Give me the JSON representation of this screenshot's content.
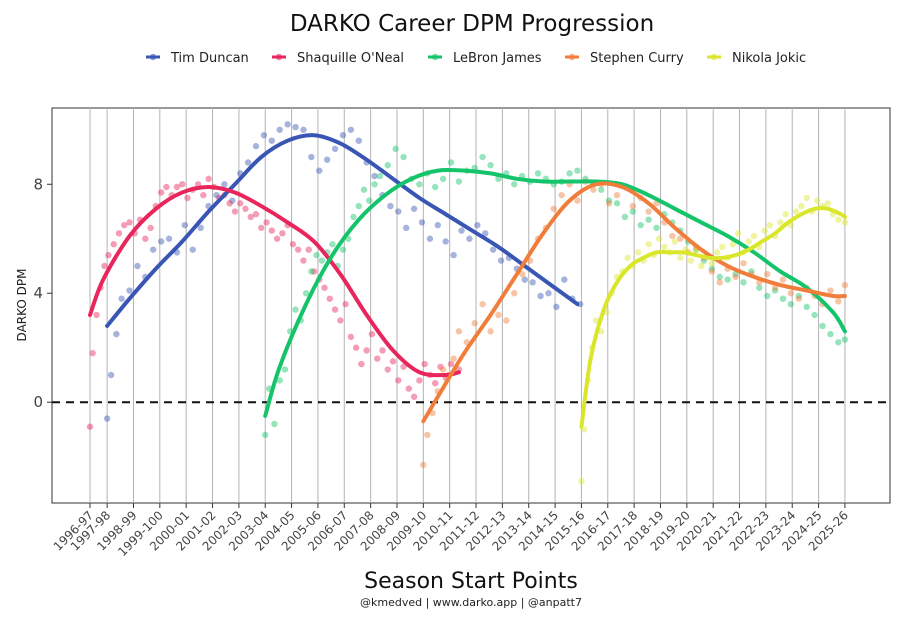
{
  "chart_data": {
    "type": "scatter",
    "title": "DARKO Career DPM Progression",
    "xlabel": "Season Start Points",
    "ylabel": "DARKO DPM",
    "caption": "@kmedved | www.darko.app | @anpatt7",
    "reference_line": 0,
    "ylim": [
      -3.7,
      10.8
    ],
    "yticks": [
      0,
      4,
      8
    ],
    "x_ticks": [
      "1996-97",
      "1997-98",
      "1998-99",
      "1999-100",
      "2000-01",
      "2001-02",
      "2002-03",
      "2003-04",
      "2004-05",
      "2005-06",
      "2006-07",
      "2007-08",
      "2008-09",
      "2009-10",
      "2010-11",
      "2011-12",
      "2012-13",
      "2013-14",
      "2014-15",
      "2015-16",
      "2016-17",
      "2017-18",
      "2018-19",
      "2019-20",
      "2020-21",
      "2021-22",
      "2022-23",
      "2023-24",
      "2024-25",
      "2025-26"
    ],
    "x_tick_positions": [
      0,
      0.65,
      1.65,
      2.65,
      3.65,
      4.65,
      5.65,
      6.65,
      7.65,
      8.65,
      9.65,
      10.65,
      11.65,
      12.65,
      13.65,
      14.65,
      15.65,
      16.65,
      17.65,
      18.65,
      19.65,
      20.65,
      21.65,
      22.65,
      23.65,
      24.65,
      25.65,
      26.65,
      27.65,
      28.65
    ],
    "legend_position": "top",
    "series": [
      {
        "name": "Tim Duncan",
        "color": "#3a56b4",
        "trend_x": [
          0.65,
          1.5,
          2.5,
          3.5,
          4.5,
          5.5,
          6.5,
          7.5,
          8.5,
          9.5,
          10.5,
          11.5,
          12.5,
          13.5,
          14.5,
          15.5,
          16.5,
          17.5,
          18.5
        ],
        "trend_y": [
          2.8,
          3.8,
          4.9,
          5.9,
          7.0,
          8.0,
          9.0,
          9.6,
          9.8,
          9.5,
          8.9,
          8.2,
          7.5,
          6.9,
          6.3,
          5.7,
          5.0,
          4.3,
          3.6
        ],
        "points_x": [
          0.65,
          0.8,
          1.0,
          1.2,
          1.5,
          1.8,
          2.1,
          2.4,
          2.7,
          3.0,
          3.3,
          3.6,
          3.9,
          4.2,
          4.5,
          4.8,
          5.1,
          5.4,
          5.7,
          6.0,
          6.3,
          6.6,
          6.9,
          7.2,
          7.5,
          7.8,
          8.1,
          8.4,
          8.7,
          9.0,
          9.3,
          9.6,
          9.9,
          10.2,
          10.5,
          10.8,
          11.1,
          11.4,
          11.7,
          12.0,
          12.3,
          12.6,
          12.9,
          13.2,
          13.5,
          13.8,
          14.1,
          14.4,
          14.7,
          15.0,
          15.3,
          15.6,
          15.9,
          16.2,
          16.5,
          16.8,
          17.1,
          17.4,
          17.7,
          18.0,
          18.3,
          18.6
        ],
        "points_y": [
          -0.6,
          1.0,
          2.5,
          3.8,
          4.1,
          5.0,
          4.6,
          5.6,
          5.9,
          6.0,
          5.5,
          6.5,
          5.6,
          6.4,
          7.2,
          7.6,
          8.0,
          7.4,
          8.4,
          8.8,
          9.4,
          9.8,
          9.6,
          10.0,
          10.2,
          10.1,
          10.0,
          9.0,
          8.5,
          8.9,
          9.3,
          9.8,
          10.0,
          9.6,
          8.8,
          8.3,
          7.6,
          7.2,
          7.0,
          6.4,
          7.1,
          6.6,
          6.0,
          6.5,
          5.9,
          5.4,
          6.3,
          6.0,
          6.5,
          6.2,
          5.6,
          5.2,
          5.3,
          4.9,
          4.5,
          4.4,
          3.9,
          4.0,
          3.5,
          4.5,
          3.8,
          3.6
        ]
      },
      {
        "name": "Shaquille O'Neal",
        "color": "#e8265c",
        "trend_x": [
          0,
          0.5,
          1.5,
          2.5,
          3.5,
          4.5,
          5.5,
          6.5,
          7.5,
          8.5,
          9.5,
          10.5,
          11.5,
          12.5,
          13.5,
          14.0
        ],
        "trend_y": [
          3.2,
          4.5,
          6.1,
          7.1,
          7.7,
          7.9,
          7.7,
          7.2,
          6.6,
          5.9,
          4.7,
          3.2,
          1.9,
          1.1,
          1.0,
          1.1
        ],
        "points_x": [
          0,
          0.1,
          0.25,
          0.4,
          0.55,
          0.7,
          0.9,
          1.1,
          1.3,
          1.5,
          1.7,
          1.9,
          2.1,
          2.3,
          2.5,
          2.7,
          2.9,
          3.1,
          3.3,
          3.5,
          3.7,
          3.9,
          4.1,
          4.3,
          4.5,
          4.7,
          4.9,
          5.1,
          5.3,
          5.5,
          5.7,
          5.9,
          6.1,
          6.3,
          6.5,
          6.7,
          6.9,
          7.1,
          7.3,
          7.5,
          7.7,
          7.9,
          8.1,
          8.3,
          8.5,
          8.7,
          8.9,
          9.1,
          9.3,
          9.5,
          9.7,
          9.9,
          10.1,
          10.3,
          10.5,
          10.7,
          10.9,
          11.1,
          11.3,
          11.5,
          11.7,
          11.9,
          12.1,
          12.3,
          12.5,
          12.7,
          12.9,
          13.1,
          13.3,
          13.5,
          13.7,
          14.0
        ],
        "points_y": [
          -0.9,
          1.8,
          3.2,
          4.2,
          5.0,
          5.4,
          5.8,
          6.2,
          6.5,
          6.6,
          6.2,
          6.7,
          6.0,
          6.4,
          7.2,
          7.7,
          7.9,
          7.6,
          7.9,
          8.0,
          7.5,
          7.8,
          8.0,
          7.6,
          8.2,
          7.9,
          7.5,
          7.6,
          7.3,
          7.0,
          7.3,
          7.1,
          6.8,
          6.9,
          6.4,
          6.6,
          6.3,
          6.0,
          6.2,
          6.5,
          5.8,
          5.6,
          5.2,
          5.6,
          4.8,
          4.5,
          4.2,
          3.8,
          3.4,
          3.0,
          3.6,
          2.4,
          2.0,
          1.4,
          1.9,
          2.5,
          1.6,
          1.9,
          1.2,
          1.5,
          0.8,
          1.3,
          0.5,
          0.2,
          0.8,
          1.4,
          1.0,
          0.7,
          1.3,
          0.9,
          1.4,
          1.2
        ]
      },
      {
        "name": "LeBron James",
        "color": "#15c46a",
        "trend_x": [
          6.65,
          7.2,
          8.2,
          9.2,
          10.2,
          11.2,
          12.2,
          13.2,
          14.2,
          15.2,
          16.2,
          17.2,
          18.2,
          19.2,
          20.2,
          21.2,
          22.2,
          23.2,
          24.2,
          25.2,
          26.2,
          27.2,
          28.2,
          28.65
        ],
        "trend_y": [
          -0.5,
          1.3,
          3.6,
          5.4,
          6.7,
          7.6,
          8.2,
          8.5,
          8.5,
          8.4,
          8.2,
          8.1,
          8.1,
          8.1,
          8.0,
          7.6,
          7.1,
          6.6,
          6.1,
          5.5,
          4.8,
          4.2,
          3.3,
          2.6
        ],
        "points_x": [
          6.65,
          6.8,
          7.0,
          7.2,
          7.4,
          7.6,
          7.8,
          8.0,
          8.2,
          8.4,
          8.6,
          8.8,
          9.0,
          9.2,
          9.4,
          9.6,
          9.8,
          10.0,
          10.2,
          10.4,
          10.6,
          10.8,
          11.0,
          11.3,
          11.6,
          11.9,
          12.2,
          12.5,
          12.8,
          13.1,
          13.4,
          13.7,
          14.0,
          14.3,
          14.6,
          14.9,
          15.2,
          15.5,
          15.8,
          16.1,
          16.4,
          16.7,
          17.0,
          17.3,
          17.6,
          17.9,
          18.2,
          18.5,
          18.8,
          19.1,
          19.4,
          19.7,
          20.0,
          20.3,
          20.6,
          20.9,
          21.2,
          21.5,
          21.8,
          22.1,
          22.4,
          22.7,
          23.0,
          23.3,
          23.6,
          23.9,
          24.2,
          24.5,
          24.8,
          25.1,
          25.4,
          25.7,
          26.0,
          26.3,
          26.6,
          26.9,
          27.2,
          27.5,
          27.8,
          28.1,
          28.4,
          28.65
        ],
        "points_y": [
          -1.2,
          0.5,
          -0.8,
          0.8,
          1.2,
          2.6,
          3.4,
          3.0,
          4.0,
          4.8,
          5.4,
          5.2,
          5.5,
          5.8,
          5.0,
          5.6,
          6.0,
          6.8,
          7.2,
          7.8,
          7.4,
          8.0,
          8.3,
          8.7,
          9.3,
          9.0,
          8.2,
          8.0,
          8.4,
          7.9,
          8.2,
          8.8,
          8.1,
          8.5,
          8.6,
          9.0,
          8.7,
          8.2,
          8.4,
          8.0,
          8.3,
          8.1,
          8.4,
          8.2,
          8.0,
          8.1,
          8.4,
          8.5,
          8.2,
          8.0,
          7.8,
          7.4,
          7.3,
          6.8,
          7.0,
          6.5,
          6.7,
          6.4,
          6.9,
          6.6,
          6.3,
          5.9,
          5.6,
          5.2,
          4.9,
          4.6,
          4.5,
          4.7,
          4.4,
          4.8,
          4.2,
          3.9,
          4.1,
          3.8,
          3.6,
          3.9,
          3.5,
          3.2,
          2.8,
          2.5,
          2.2,
          2.3
        ]
      },
      {
        "name": "Stephen Curry",
        "color": "#f07d3a",
        "trend_x": [
          12.65,
          13.2,
          14.2,
          15.2,
          16.2,
          17.2,
          18.2,
          19.2,
          20.2,
          21.2,
          22.2,
          23.2,
          24.2,
          25.2,
          26.2,
          27.2,
          28.2,
          28.65
        ],
        "trend_y": [
          -0.7,
          0.2,
          1.8,
          3.2,
          4.7,
          6.2,
          7.4,
          8.0,
          7.9,
          7.3,
          6.4,
          5.6,
          5.0,
          4.6,
          4.3,
          4.1,
          3.9,
          3.9
        ],
        "points_x": [
          12.65,
          12.8,
          13.0,
          13.2,
          13.4,
          13.6,
          13.8,
          14.0,
          14.3,
          14.6,
          14.9,
          15.2,
          15.5,
          15.8,
          16.1,
          16.4,
          16.7,
          17.0,
          17.3,
          17.6,
          17.9,
          18.2,
          18.5,
          18.8,
          19.1,
          19.4,
          19.7,
          20.0,
          20.3,
          20.6,
          20.9,
          21.2,
          21.5,
          21.8,
          22.1,
          22.4,
          22.7,
          23.0,
          23.3,
          23.6,
          23.9,
          24.2,
          24.5,
          24.8,
          25.1,
          25.4,
          25.7,
          26.0,
          26.3,
          26.6,
          26.9,
          27.2,
          27.5,
          27.8,
          28.1,
          28.4,
          28.65
        ],
        "points_y": [
          -2.3,
          -1.2,
          -0.4,
          0.4,
          1.2,
          1.0,
          1.6,
          2.6,
          2.2,
          2.9,
          3.6,
          2.6,
          3.2,
          3.0,
          4.0,
          4.7,
          5.2,
          6.0,
          6.4,
          7.1,
          7.6,
          8.0,
          7.4,
          8.1,
          7.8,
          8.0,
          7.3,
          7.6,
          7.9,
          7.2,
          7.5,
          7.0,
          7.3,
          6.6,
          6.1,
          6.0,
          5.5,
          5.7,
          5.3,
          4.8,
          4.4,
          4.9,
          4.6,
          5.1,
          4.7,
          4.4,
          4.7,
          4.2,
          4.5,
          4.0,
          3.8,
          4.2,
          3.9,
          3.6,
          4.1,
          3.7,
          4.3
        ]
      },
      {
        "name": "Nikola Jokic",
        "color": "#d9e62a",
        "trend_x": [
          18.65,
          19.0,
          19.5,
          20.0,
          20.5,
          21.0,
          21.5,
          22.0,
          22.5,
          23.0,
          23.5,
          24.0,
          24.5,
          25.0,
          25.5,
          26.0,
          26.5,
          27.0,
          27.5,
          28.0,
          28.5,
          28.65
        ],
        "trend_y": [
          -0.9,
          1.6,
          3.4,
          4.4,
          5.0,
          5.3,
          5.5,
          5.5,
          5.5,
          5.4,
          5.3,
          5.3,
          5.4,
          5.6,
          5.9,
          6.2,
          6.6,
          6.9,
          7.1,
          7.1,
          6.9,
          6.8
        ],
        "points_x": [
          18.65,
          18.75,
          18.9,
          19.05,
          19.2,
          19.4,
          19.6,
          19.8,
          20.0,
          20.2,
          20.4,
          20.6,
          20.8,
          21.0,
          21.2,
          21.4,
          21.6,
          21.8,
          22.0,
          22.2,
          22.4,
          22.6,
          22.8,
          23.0,
          23.2,
          23.4,
          23.6,
          23.8,
          24.0,
          24.2,
          24.4,
          24.6,
          24.8,
          25.0,
          25.2,
          25.4,
          25.6,
          25.8,
          26.0,
          26.2,
          26.4,
          26.6,
          26.8,
          27.0,
          27.2,
          27.4,
          27.6,
          27.8,
          28.0,
          28.2,
          28.4,
          28.65
        ],
        "points_y": [
          -2.9,
          -1.0,
          0.8,
          2.0,
          3.0,
          2.6,
          3.3,
          4.0,
          4.6,
          4.8,
          5.3,
          5.0,
          5.5,
          5.2,
          5.8,
          5.4,
          6.0,
          5.7,
          5.5,
          5.9,
          5.3,
          5.6,
          5.2,
          5.6,
          5.0,
          5.4,
          5.1,
          5.5,
          5.7,
          5.3,
          5.8,
          6.2,
          5.5,
          5.9,
          6.1,
          5.7,
          6.3,
          6.5,
          6.1,
          6.6,
          6.9,
          6.5,
          7.0,
          7.2,
          7.5,
          7.0,
          7.4,
          7.2,
          7.3,
          6.9,
          6.7,
          6.6
        ]
      }
    ]
  }
}
